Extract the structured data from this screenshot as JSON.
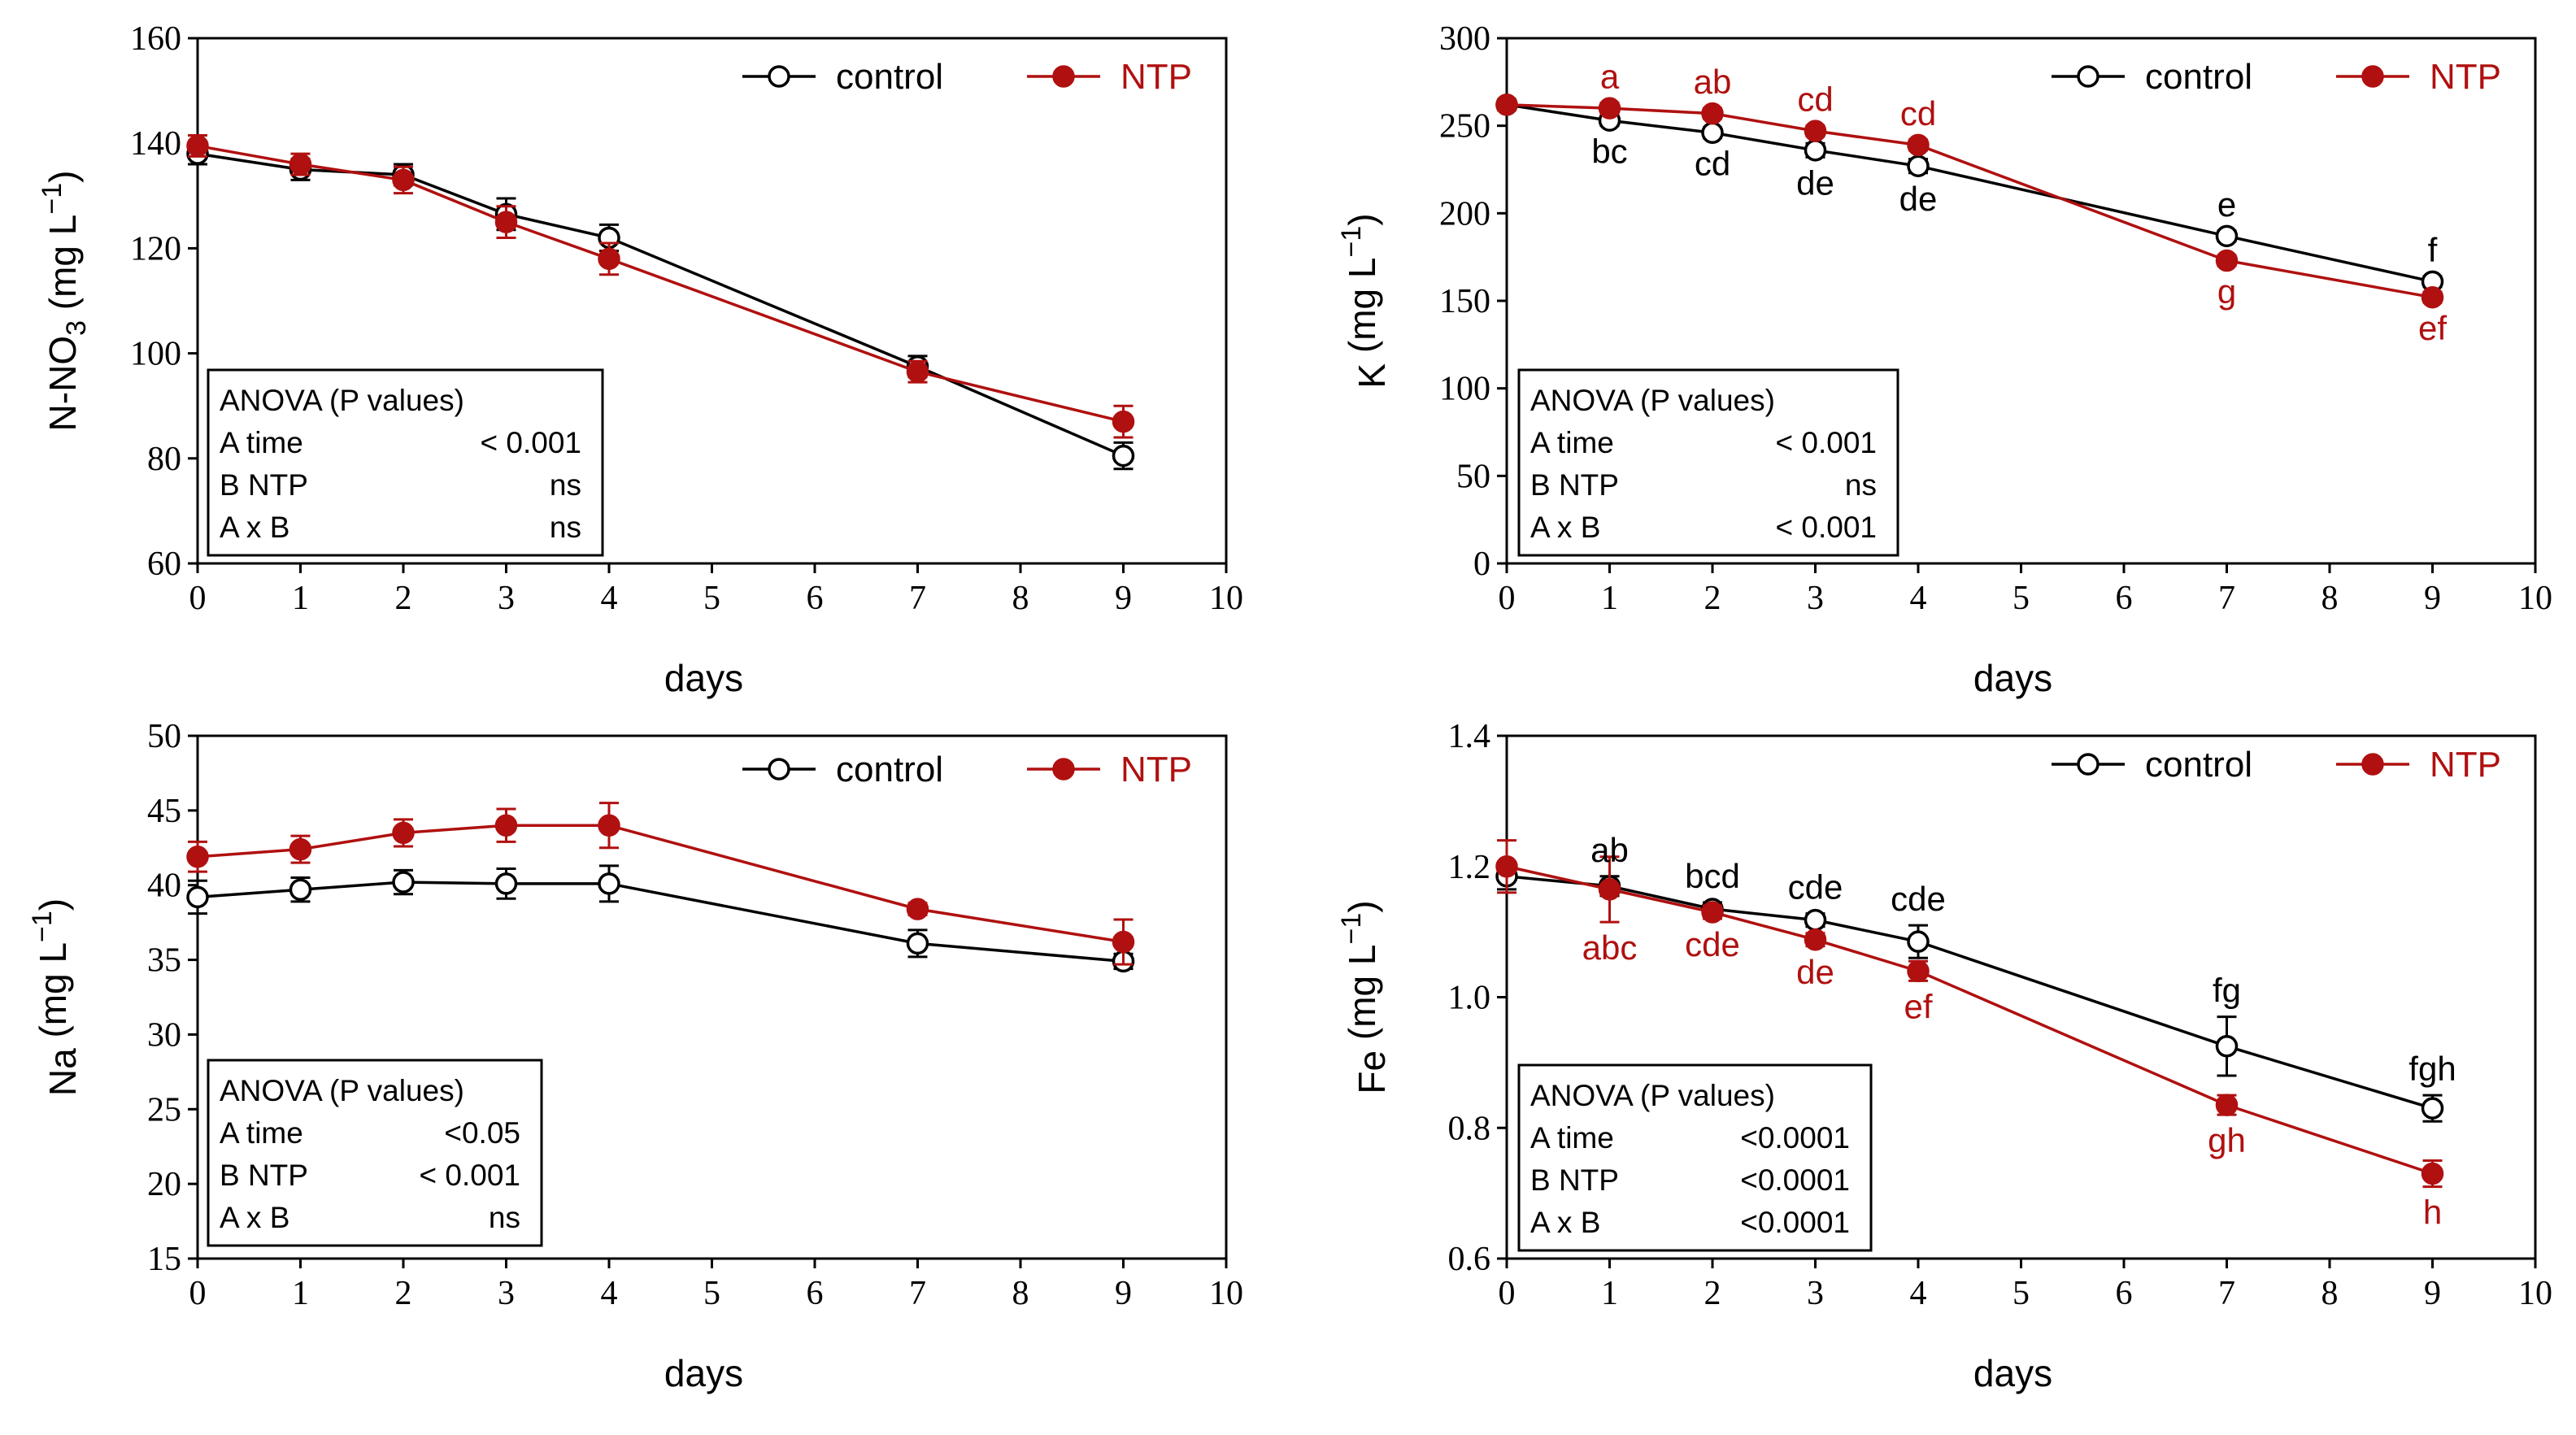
{
  "colors": {
    "control": "#000000",
    "ntp": "#b01010",
    "axis": "#000000"
  },
  "chart_data": [
    {
      "id": "no3",
      "type": "line",
      "title": "",
      "xlabel": "days",
      "ylabel": {
        "pre": "N-NO",
        "sub": "3",
        "unit_pre": "(mg L",
        "unit_sup": "−1",
        "unit_post": ")"
      },
      "xlim": [
        0,
        10
      ],
      "ylim": [
        60,
        160
      ],
      "xticks": [
        0,
        1,
        2,
        3,
        4,
        5,
        6,
        7,
        8,
        9,
        10
      ],
      "yticks": [
        60,
        80,
        100,
        120,
        140,
        160
      ],
      "tick_decimals": 0,
      "x": [
        0,
        1,
        2,
        3,
        4,
        7,
        9
      ],
      "legend": {
        "control": "control",
        "ntp": "NTP"
      },
      "series": [
        {
          "name": "control",
          "values": [
            138,
            135,
            134,
            126.5,
            122,
            97.5,
            80.5
          ],
          "errors": [
            2,
            2,
            2,
            3,
            2.5,
            2,
            2.5
          ]
        },
        {
          "name": "NTP",
          "values": [
            139.5,
            136,
            133,
            125,
            118,
            96.5,
            87
          ],
          "errors": [
            2,
            2,
            2.5,
            3,
            3,
            2,
            3
          ]
        }
      ],
      "letters": {
        "control": [],
        "ntp": []
      },
      "anova": {
        "title": "ANOVA (P values)",
        "rows": [
          {
            "label": "A time",
            "value": "< 0.001"
          },
          {
            "label": "B NTP",
            "value": "ns"
          },
          {
            "label": "A x B",
            "value": "ns"
          }
        ]
      }
    },
    {
      "id": "k",
      "type": "line",
      "title": "",
      "xlabel": "days",
      "ylabel": {
        "pre": "K",
        "sub": "",
        "unit_pre": "(mg L",
        "unit_sup": "−1",
        "unit_post": ")"
      },
      "xlim": [
        0,
        10
      ],
      "ylim": [
        0,
        300
      ],
      "xticks": [
        0,
        1,
        2,
        3,
        4,
        5,
        6,
        7,
        8,
        9,
        10
      ],
      "yticks": [
        0,
        50,
        100,
        150,
        200,
        250,
        300
      ],
      "tick_decimals": 0,
      "x": [
        0,
        1,
        2,
        3,
        4,
        7,
        9
      ],
      "legend": {
        "control": "control",
        "ntp": "NTP"
      },
      "series": [
        {
          "name": "control",
          "values": [
            262,
            253,
            246,
            236,
            227,
            187,
            161
          ],
          "errors": [
            3,
            3,
            3,
            4,
            4,
            3,
            3
          ]
        },
        {
          "name": "NTP",
          "values": [
            262,
            260,
            257,
            247,
            239,
            173,
            152
          ],
          "errors": [
            3,
            3,
            3,
            3,
            3,
            3,
            3
          ]
        }
      ],
      "letters": {
        "control": [
          {
            "x": 1,
            "text": "bc",
            "pos": "below"
          },
          {
            "x": 2,
            "text": "cd",
            "pos": "below"
          },
          {
            "x": 3,
            "text": "de",
            "pos": "below"
          },
          {
            "x": 4,
            "text": "de",
            "pos": "below"
          },
          {
            "x": 7,
            "text": "e",
            "pos": "above"
          },
          {
            "x": 9,
            "text": "f",
            "pos": "above"
          }
        ],
        "ntp": [
          {
            "x": 1,
            "text": "a",
            "pos": "above"
          },
          {
            "x": 2,
            "text": "ab",
            "pos": "above"
          },
          {
            "x": 3,
            "text": "cd",
            "pos": "above"
          },
          {
            "x": 4,
            "text": "cd",
            "pos": "above"
          },
          {
            "x": 7,
            "text": "g",
            "pos": "below"
          },
          {
            "x": 9,
            "text": "ef",
            "pos": "below"
          }
        ]
      },
      "anova": {
        "title": "ANOVA (P values)",
        "rows": [
          {
            "label": "A time",
            "value": "< 0.001"
          },
          {
            "label": "B NTP",
            "value": "ns"
          },
          {
            "label": "A x B",
            "value": "< 0.001"
          }
        ]
      }
    },
    {
      "id": "na",
      "type": "line",
      "title": "",
      "xlabel": "days",
      "ylabel": {
        "pre": "Na",
        "sub": "",
        "unit_pre": "(mg L",
        "unit_sup": "−1",
        "unit_post": ")"
      },
      "xlim": [
        0,
        10
      ],
      "ylim": [
        15,
        50
      ],
      "xticks": [
        0,
        1,
        2,
        3,
        4,
        5,
        6,
        7,
        8,
        9,
        10
      ],
      "yticks": [
        15,
        20,
        25,
        30,
        35,
        40,
        45,
        50
      ],
      "tick_decimals": 0,
      "x": [
        0,
        1,
        2,
        3,
        4,
        7,
        9
      ],
      "legend": {
        "control": "control",
        "ntp": "NTP"
      },
      "series": [
        {
          "name": "control",
          "values": [
            39.2,
            39.7,
            40.2,
            40.1,
            40.1,
            36.1,
            34.9
          ],
          "errors": [
            1.1,
            0.8,
            0.8,
            1.0,
            1.2,
            0.9,
            0.5
          ]
        },
        {
          "name": "NTP",
          "values": [
            41.9,
            42.4,
            43.5,
            44,
            44,
            38.4,
            36.2
          ],
          "errors": [
            1.0,
            0.9,
            0.9,
            1.1,
            1.5,
            0.4,
            1.5
          ]
        }
      ],
      "letters": {
        "control": [],
        "ntp": []
      },
      "anova": {
        "title": "ANOVA (P values)",
        "rows": [
          {
            "label": "A time",
            "value": "<0.05"
          },
          {
            "label": "B NTP",
            "value": "< 0.001"
          },
          {
            "label": "A x B",
            "value": "ns"
          }
        ]
      }
    },
    {
      "id": "fe",
      "type": "line",
      "title": "",
      "xlabel": "days",
      "ylabel": {
        "pre": "Fe",
        "sub": "",
        "unit_pre": "(mg L",
        "unit_sup": "−1",
        "unit_post": ")"
      },
      "xlim": [
        0,
        10
      ],
      "ylim": [
        0.6,
        1.4
      ],
      "xticks": [
        0,
        1,
        2,
        3,
        4,
        5,
        6,
        7,
        8,
        9,
        10
      ],
      "yticks": [
        0.6,
        0.8,
        1.0,
        1.2,
        1.4
      ],
      "tick_decimals": 1,
      "x": [
        0,
        1,
        2,
        3,
        4,
        7,
        9
      ],
      "legend": {
        "control": "control",
        "ntp": "NTP"
      },
      "series": [
        {
          "name": "control",
          "values": [
            1.185,
            1.17,
            1.135,
            1.118,
            1.085,
            0.925,
            0.83
          ],
          "errors": [
            0.02,
            0.015,
            0.01,
            0.01,
            0.025,
            0.045,
            0.02
          ]
        },
        {
          "name": "NTP",
          "values": [
            1.2,
            1.165,
            1.13,
            1.088,
            1.04,
            0.835,
            0.73
          ],
          "errors": [
            0.04,
            0.05,
            0.01,
            0.01,
            0.015,
            0.015,
            0.02
          ]
        }
      ],
      "letters": {
        "control": [
          {
            "x": 1,
            "text": "ab",
            "pos": "above"
          },
          {
            "x": 2,
            "text": "bcd",
            "pos": "above"
          },
          {
            "x": 3,
            "text": "cde",
            "pos": "above"
          },
          {
            "x": 4,
            "text": "cde",
            "pos": "above"
          },
          {
            "x": 7,
            "text": "fg",
            "pos": "above"
          },
          {
            "x": 9,
            "text": "fgh",
            "pos": "above"
          }
        ],
        "ntp": [
          {
            "x": 1,
            "text": "abc",
            "pos": "below"
          },
          {
            "x": 2,
            "text": "cde",
            "pos": "below"
          },
          {
            "x": 3,
            "text": "de",
            "pos": "below"
          },
          {
            "x": 4,
            "text": "ef",
            "pos": "below"
          },
          {
            "x": 7,
            "text": "gh",
            "pos": "below"
          },
          {
            "x": 9,
            "text": "h",
            "pos": "below"
          }
        ]
      },
      "anova": {
        "title": "ANOVA (P values)",
        "rows": [
          {
            "label": "A time",
            "value": "<0.0001"
          },
          {
            "label": "B NTP",
            "value": "<0.0001"
          },
          {
            "label": "A x B",
            "value": "<0.0001"
          }
        ]
      }
    }
  ]
}
